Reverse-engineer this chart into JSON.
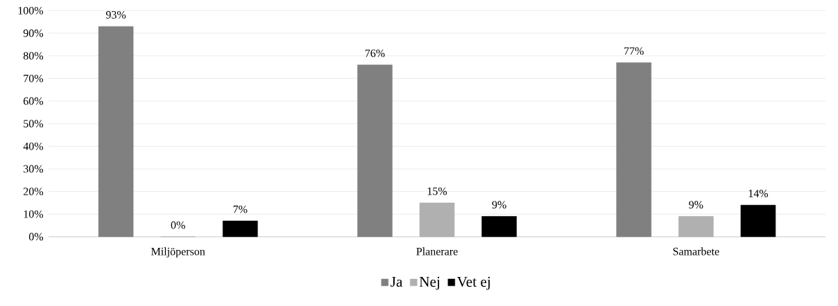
{
  "chart_data": {
    "type": "bar",
    "categories": [
      "Miljöperson",
      "Planerare",
      "Samarbete"
    ],
    "series": [
      {
        "name": "Ja",
        "color": "#808080",
        "values": [
          93,
          76,
          77
        ],
        "value_labels": [
          "93%",
          "76%",
          "77%"
        ]
      },
      {
        "name": "Nej",
        "color": "#b0b0b0",
        "values": [
          0,
          15,
          9
        ],
        "value_labels": [
          "0%",
          "15%",
          "9%"
        ]
      },
      {
        "name": "Vet ej",
        "color": "#000000",
        "values": [
          7,
          9,
          14
        ],
        "value_labels": [
          "7%",
          "9%",
          "14%"
        ]
      }
    ],
    "ylim": [
      0,
      100
    ],
    "yticks": [
      {
        "value": 0,
        "label": "0%"
      },
      {
        "value": 10,
        "label": "10%"
      },
      {
        "value": 20,
        "label": "20%"
      },
      {
        "value": 30,
        "label": "30%"
      },
      {
        "value": 40,
        "label": "40%"
      },
      {
        "value": 50,
        "label": "50%"
      },
      {
        "value": 60,
        "label": "60%"
      },
      {
        "value": 70,
        "label": "70%"
      },
      {
        "value": 80,
        "label": "80%"
      },
      {
        "value": 90,
        "label": "90%"
      },
      {
        "value": 100,
        "label": "100%"
      }
    ],
    "grid": "y",
    "legend": "bottom"
  }
}
